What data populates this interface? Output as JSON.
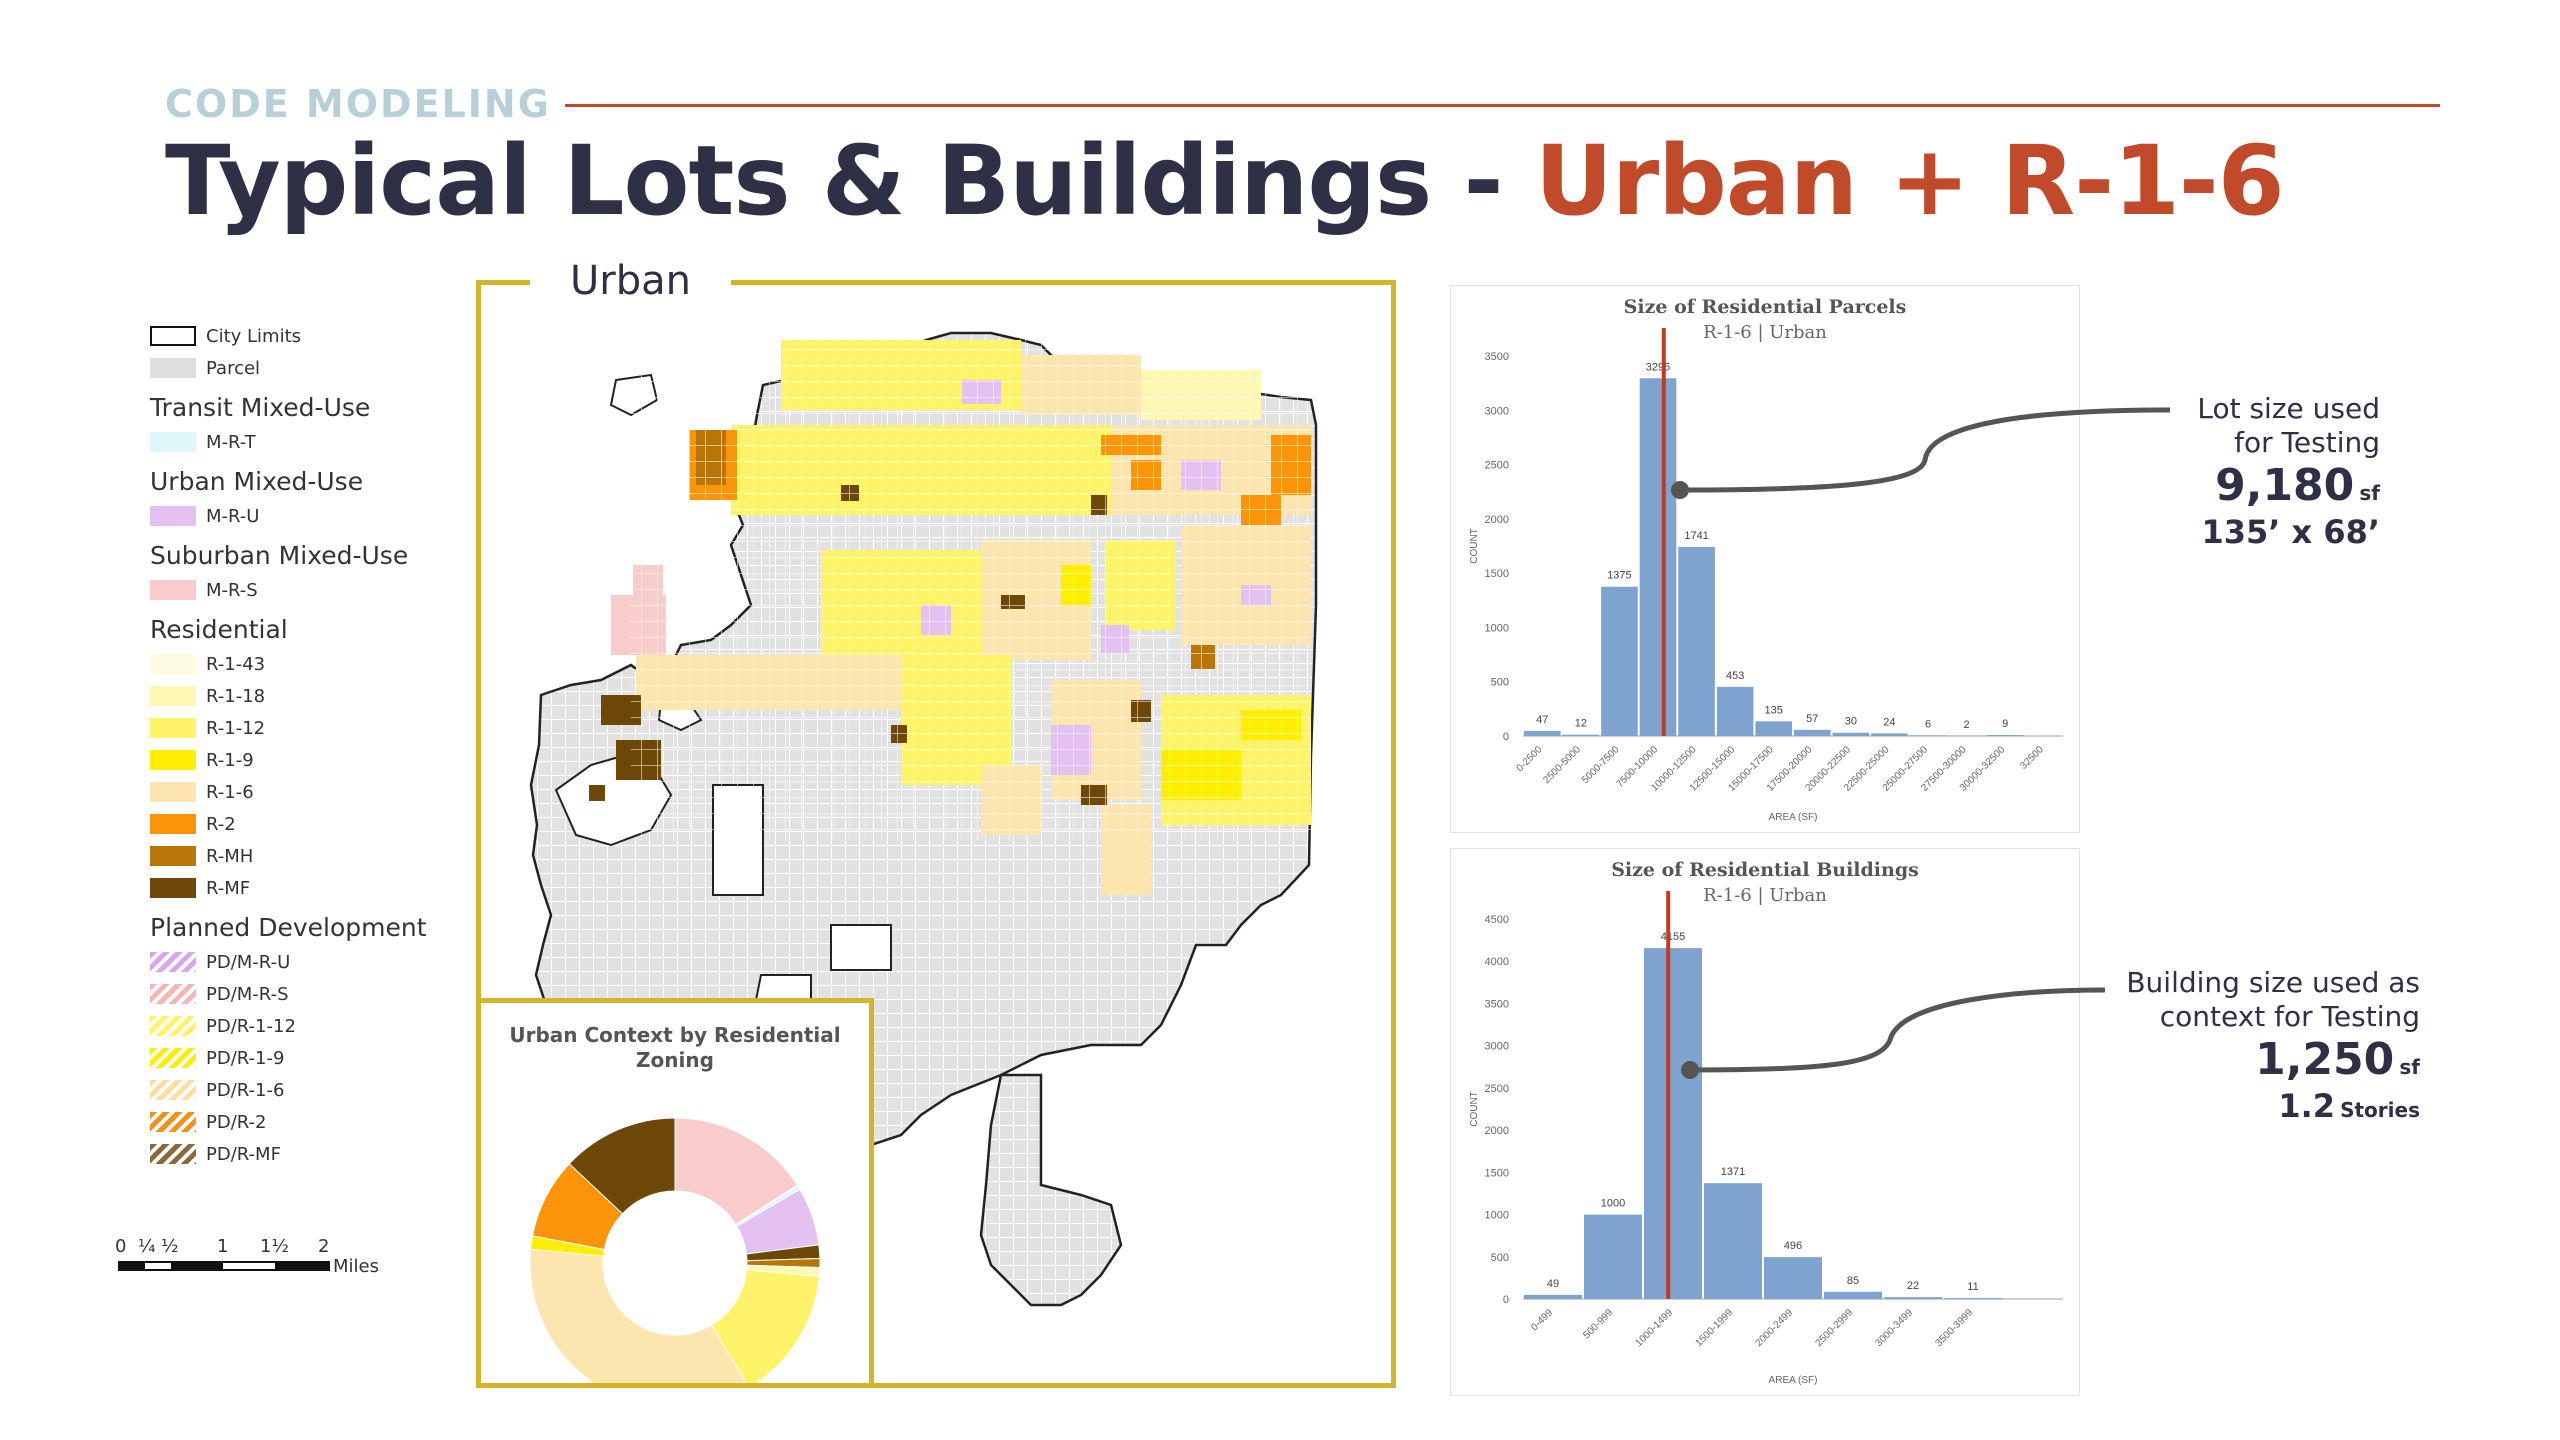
{
  "header": {
    "eyebrow": "CODE MODELING",
    "title_main": "Typical Lots & Buildings - ",
    "title_accent": "Urban + R-1-6"
  },
  "legend": {
    "items": [
      {
        "type": "item",
        "label": "City Limits",
        "color": "#ffffff",
        "style": "outline"
      },
      {
        "type": "item",
        "label": "Parcel",
        "color": "#dedede"
      },
      {
        "type": "heading",
        "label": "Transit Mixed-Use"
      },
      {
        "type": "item",
        "label": "M-R-T",
        "color": "#dff6fb"
      },
      {
        "type": "heading",
        "label": "Urban Mixed-Use"
      },
      {
        "type": "item",
        "label": "M-R-U",
        "color": "#e3c2f2"
      },
      {
        "type": "heading",
        "label": "Suburban Mixed-Use"
      },
      {
        "type": "item",
        "label": "M-R-S",
        "color": "#f9cccc"
      },
      {
        "type": "heading",
        "label": "Residential"
      },
      {
        "type": "item",
        "label": "R-1-43",
        "color": "#fefce0"
      },
      {
        "type": "item",
        "label": "R-1-18",
        "color": "#fff7b4"
      },
      {
        "type": "item",
        "label": "R-1-12",
        "color": "#fff36a"
      },
      {
        "type": "item",
        "label": "R-1-9",
        "color": "#ffee00"
      },
      {
        "type": "item",
        "label": "R-1-6",
        "color": "#fde5b0"
      },
      {
        "type": "item",
        "label": "R-2",
        "color": "#fb9408"
      },
      {
        "type": "item",
        "label": "R-MH",
        "color": "#b87608"
      },
      {
        "type": "item",
        "label": "R-MF",
        "color": "#6e4808"
      },
      {
        "type": "heading",
        "label": "Planned Development"
      },
      {
        "type": "item",
        "label": "PD/M-R-U",
        "color": "#d9a6ee",
        "style": "hatch"
      },
      {
        "type": "item",
        "label": "PD/M-R-S",
        "color": "#f6b6b6",
        "style": "hatch"
      },
      {
        "type": "item",
        "label": "PD/R-1-12",
        "color": "#fff36a",
        "style": "hatch"
      },
      {
        "type": "item",
        "label": "PD/R-1-9",
        "color": "#ffee00",
        "style": "hatch"
      },
      {
        "type": "item",
        "label": "PD/R-1-6",
        "color": "#fbdf9e",
        "style": "hatch"
      },
      {
        "type": "item",
        "label": "PD/R-2",
        "color": "#f39018",
        "style": "hatch"
      },
      {
        "type": "item",
        "label": "PD/R-MF",
        "color": "#8a6a3a",
        "style": "hatch"
      }
    ]
  },
  "scale_bar": {
    "ticks": [
      "0",
      "¼",
      "½",
      "1",
      "1½",
      "2"
    ],
    "unit": "Miles"
  },
  "map": {
    "label": "Urban"
  },
  "donut": {
    "title": "Urban Context by Residential Zoning",
    "slices": [
      {
        "zone": "M-R-S",
        "value": 16,
        "color": "#f9cccc"
      },
      {
        "zone": "M-R-T",
        "value": 0.5,
        "color": "#dff6fb"
      },
      {
        "zone": "M-R-U",
        "value": 6.5,
        "color": "#e3c2f2"
      },
      {
        "zone": "R-MF",
        "value": 1.5,
        "color": "#6e4808"
      },
      {
        "zone": "R-MH",
        "value": 1,
        "color": "#b87608"
      },
      {
        "zone": "R-1-18",
        "value": 1,
        "color": "#fff7b4"
      },
      {
        "zone": "R-1-12",
        "value": 15,
        "color": "#fff36a"
      },
      {
        "zone": "R-1-6",
        "value": 35,
        "color": "#fde5b0"
      },
      {
        "zone": "R-1-9",
        "value": 1.5,
        "color": "#ffee00"
      },
      {
        "zone": "R-2",
        "value": 9,
        "color": "#fb9408"
      },
      {
        "zone": "R-MF",
        "value": 13,
        "color": "#6e4808"
      }
    ]
  },
  "chart_data": [
    {
      "type": "bar",
      "title": "Size of Residential Parcels",
      "subtitle": "R-1-6 | Urban",
      "xlabel": "AREA (SF)",
      "ylabel": "COUNT",
      "ylim": [
        0,
        3500
      ],
      "yticks": [
        "0",
        "500",
        "1000",
        "1500",
        "2000",
        "2500",
        "3000",
        "3500"
      ],
      "categories": [
        "0-2500",
        "2500-5000",
        "5000-7500",
        "7500-10000",
        "10000-12500",
        "12500-15000",
        "15000-17500",
        "17500-20000",
        "20000-22500",
        "22500-25000",
        "25000-27500",
        "27500-30000",
        "30000-32500",
        "32500"
      ],
      "values": [
        47,
        12,
        1375,
        3295,
        1741,
        453,
        135,
        57,
        30,
        24,
        6,
        2,
        9,
        null
      ],
      "data_labels": [
        "47",
        "12",
        "1375",
        "3295",
        "1741",
        "453",
        "135",
        "57",
        "30",
        "24",
        "6",
        "2",
        "9",
        ""
      ],
      "marker_category_index": 3,
      "marker_offset": 0.65,
      "bar_color": "#7ea3cf",
      "marker_color": "#c23a22"
    },
    {
      "type": "bar",
      "title": "Size of Residential Buildings",
      "subtitle": "R-1-6 | Urban",
      "xlabel": "AREA (SF)",
      "ylabel": "COUNT",
      "ylim": [
        0,
        4500
      ],
      "yticks": [
        "0",
        "500",
        "1000",
        "1500",
        "2000",
        "2500",
        "3000",
        "3500",
        "4000",
        "4500"
      ],
      "categories": [
        "0-499",
        "500-999",
        "1000-1499",
        "1500-1999",
        "2000-2499",
        "2500-2999",
        "3000-3499",
        "3500-3999",
        ""
      ],
      "values": [
        49,
        1000,
        4155,
        1371,
        496,
        85,
        22,
        11,
        null
      ],
      "data_labels": [
        "49",
        "1000",
        "4155",
        "1371",
        "496",
        "85",
        "22",
        "11",
        ""
      ],
      "marker_category_index": 2,
      "marker_offset": 0.42,
      "bar_color": "#7ea3cf",
      "marker_color": "#c23a22"
    }
  ],
  "callouts": {
    "lot": {
      "line1": "Lot size used",
      "line2": "for Testing",
      "value": "9,180",
      "unit": "sf",
      "dims": "135’ x 68’"
    },
    "building": {
      "line1": "Building size used as",
      "line2": "context for Testing",
      "value": "1,250",
      "unit": "sf",
      "stories": "1.2",
      "stories_label": "Stories"
    }
  }
}
